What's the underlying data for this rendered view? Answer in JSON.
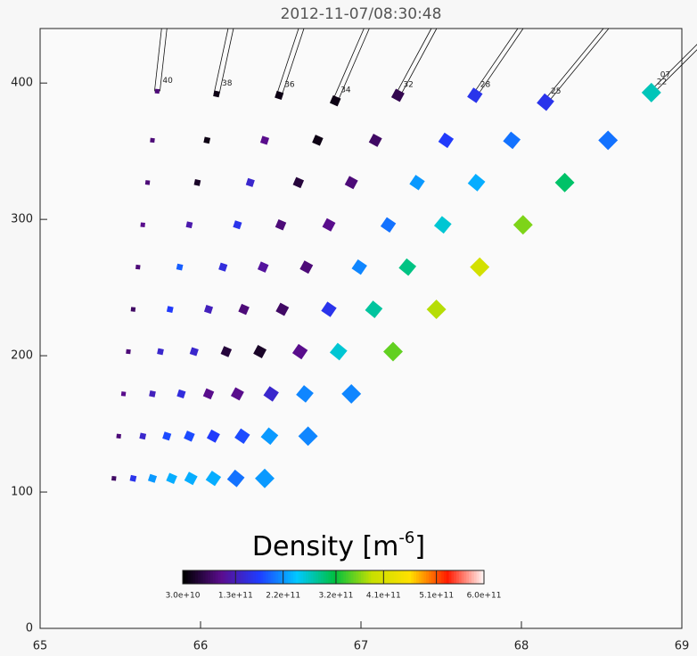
{
  "chart_data": {
    "type": "scatter",
    "title": "2012-11-07/08:30:48",
    "xlim": [
      65,
      69
    ],
    "ylim": [
      0,
      440
    ],
    "xticks": [
      65,
      66,
      67,
      68,
      69
    ],
    "yticks": [
      0,
      100,
      200,
      300,
      400
    ],
    "colorbar_title": {
      "text": "Density [m",
      "sup": "-6",
      "end": "]"
    },
    "colorbar_lim": [
      30000000000,
      600000000000
    ],
    "colorbar_ticks": [
      {
        "value": 30000000000,
        "label": "3.0e+10"
      },
      {
        "value": 130000000000,
        "label": "1.3e+11"
      },
      {
        "value": 220000000000,
        "label": "2.2e+11"
      },
      {
        "value": 320000000000,
        "label": "3.2e+11"
      },
      {
        "value": 410000000000,
        "label": "4.1e+11"
      },
      {
        "value": 510000000000,
        "label": "5.1e+11"
      },
      {
        "value": 600000000000,
        "label": "6.0e+11"
      }
    ],
    "colormap": [
      "#000000",
      "#5b0d8f",
      "#1f3cff",
      "#00c8ff",
      "#00c040",
      "#c8e000",
      "#ffe000",
      "#ff1a00",
      "#ffffff"
    ],
    "annotations": [
      "07"
    ],
    "series": [
      {
        "name": "40",
        "x": [
          65.46,
          65.49,
          65.52,
          65.55,
          65.58,
          65.61,
          65.64,
          65.67,
          65.7,
          65.73
        ],
        "y": [
          110,
          141,
          172,
          203,
          234,
          265,
          296,
          327,
          358,
          394
        ],
        "values": [
          80000000000,
          90000000000,
          100000000000,
          90000000000,
          80000000000,
          90000000000,
          100000000000,
          90000000000,
          90000000000,
          90000000000
        ]
      },
      {
        "name": "38",
        "x": [
          65.58,
          65.64,
          65.7,
          65.75,
          65.81,
          65.87,
          65.93,
          65.98,
          66.04,
          66.1
        ],
        "y": [
          110,
          141,
          172,
          203,
          234,
          265,
          296,
          327,
          358,
          392
        ],
        "values": [
          160000000000,
          140000000000,
          130000000000,
          140000000000,
          170000000000,
          190000000000,
          120000000000,
          50000000000,
          40000000000,
          40000000000
        ]
      },
      {
        "name": "36",
        "x": [
          65.7,
          65.79,
          65.88,
          65.96,
          66.05,
          66.14,
          66.23,
          66.31,
          66.4,
          66.49
        ],
        "y": [
          110,
          141,
          172,
          203,
          234,
          265,
          296,
          327,
          358,
          391
        ],
        "values": [
          220000000000,
          180000000000,
          150000000000,
          140000000000,
          130000000000,
          150000000000,
          160000000000,
          140000000000,
          100000000000,
          40000000000
        ]
      },
      {
        "name": "34",
        "x": [
          65.82,
          65.93,
          66.05,
          66.16,
          66.27,
          66.39,
          66.5,
          66.61,
          66.73,
          66.84
        ],
        "y": [
          110,
          141,
          172,
          203,
          234,
          265,
          296,
          327,
          358,
          387
        ],
        "values": [
          230000000000,
          180000000000,
          100000000000,
          60000000000,
          90000000000,
          110000000000,
          90000000000,
          60000000000,
          40000000000,
          40000000000
        ]
      },
      {
        "name": "32",
        "x": [
          65.94,
          66.08,
          66.23,
          66.37,
          66.51,
          66.66,
          66.8,
          66.94,
          67.09,
          67.23
        ],
        "y": [
          110,
          141,
          172,
          203,
          234,
          265,
          296,
          327,
          358,
          391
        ],
        "values": [
          230000000000,
          170000000000,
          100000000000,
          50000000000,
          80000000000,
          90000000000,
          100000000000,
          90000000000,
          80000000000,
          70000000000
        ]
      },
      {
        "name": "28",
        "x": [
          66.08,
          66.26,
          66.44,
          66.62,
          66.8,
          66.99,
          67.17,
          67.35,
          67.53,
          67.71
        ],
        "y": [
          110,
          141,
          172,
          203,
          234,
          265,
          296,
          327,
          358,
          391
        ],
        "values": [
          230000000000,
          180000000000,
          140000000000,
          100000000000,
          160000000000,
          210000000000,
          200000000000,
          220000000000,
          170000000000,
          160000000000
        ]
      },
      {
        "name": "25",
        "x": [
          66.22,
          66.43,
          66.65,
          66.86,
          67.08,
          67.29,
          67.51,
          67.72,
          67.94,
          68.15
        ],
        "y": [
          110,
          141,
          172,
          203,
          234,
          265,
          296,
          327,
          358,
          386
        ],
        "values": [
          200000000000,
          220000000000,
          210000000000,
          260000000000,
          280000000000,
          290000000000,
          260000000000,
          230000000000,
          200000000000,
          160000000000
        ]
      },
      {
        "name": "22",
        "x": [
          66.4,
          66.67,
          66.94,
          67.2,
          67.47,
          67.74,
          68.01,
          68.27,
          68.54,
          68.81
        ],
        "y": [
          110,
          141,
          172,
          203,
          234,
          265,
          296,
          327,
          358,
          393
        ],
        "values": [
          220000000000,
          210000000000,
          210000000000,
          350000000000,
          380000000000,
          400000000000,
          360000000000,
          300000000000,
          200000000000,
          270000000000
        ]
      }
    ]
  }
}
